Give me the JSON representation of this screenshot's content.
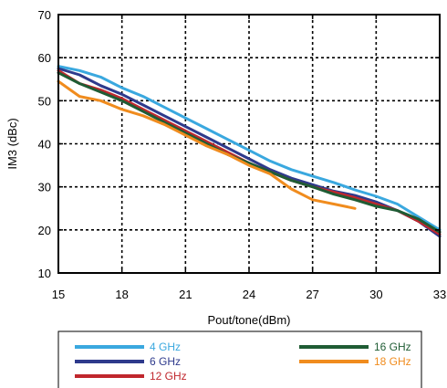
{
  "chart_data": {
    "type": "line",
    "title": "",
    "xlabel": "Pout/tone(dBm)",
    "ylabel": "IM3 (dBc)",
    "xlim": [
      15,
      33
    ],
    "ylim": [
      10,
      70
    ],
    "xticks": [
      15,
      18,
      21,
      24,
      27,
      30,
      33
    ],
    "yticks": [
      10,
      20,
      30,
      40,
      50,
      60,
      70
    ],
    "grid": true,
    "legend_position": "below",
    "series": [
      {
        "name": "4 GHz",
        "color": "#3aa8df",
        "x": [
          15,
          16,
          17,
          18,
          19,
          20,
          21,
          22,
          23,
          24,
          25,
          26,
          27,
          28,
          29,
          30,
          31,
          32,
          33
        ],
        "y": [
          58,
          57,
          55.5,
          53,
          51,
          48.5,
          46,
          43.5,
          41,
          38.5,
          36,
          34,
          32.5,
          31,
          29.3,
          27.8,
          26,
          23,
          20
        ]
      },
      {
        "name": "6 GHz",
        "color": "#2e3a8c",
        "x": [
          15,
          16,
          17,
          18,
          19,
          20,
          21,
          22,
          23,
          24,
          25,
          26,
          27,
          28,
          29,
          30,
          31,
          32,
          33
        ],
        "y": [
          57.5,
          56,
          53.5,
          51.5,
          49,
          46.5,
          44,
          41.5,
          39,
          36.5,
          34,
          32,
          30.5,
          29,
          28,
          26.5,
          24.5,
          22,
          18.5
        ]
      },
      {
        "name": "12 GHz",
        "color": "#c0272d",
        "x": [
          15,
          16,
          17,
          18,
          19,
          20,
          21,
          22,
          23,
          24,
          25,
          26,
          27,
          28,
          29,
          30,
          31,
          32,
          33
        ],
        "y": [
          57,
          54,
          52.5,
          50.5,
          48,
          45.5,
          43,
          40.5,
          38,
          35.5,
          33.5,
          31.5,
          30,
          28.8,
          27.5,
          26,
          24.5,
          22,
          19
        ]
      },
      {
        "name": "16 GHz",
        "color": "#1f5c34",
        "x": [
          15,
          16,
          17,
          18,
          19,
          20,
          21,
          22,
          23,
          24,
          25,
          26,
          27,
          28,
          29,
          30,
          31,
          32,
          33
        ],
        "y": [
          56.5,
          54,
          52,
          50,
          47.5,
          45,
          42.5,
          40,
          37.5,
          35.5,
          33.5,
          31.5,
          30,
          28.3,
          27,
          25.5,
          24.5,
          22.5,
          19.5
        ]
      },
      {
        "name": "18 GHz",
        "color": "#f08c1e",
        "x": [
          15,
          16,
          17,
          18,
          19,
          20,
          21,
          22,
          23,
          24,
          25,
          26,
          27,
          28,
          29
        ],
        "y": [
          54.5,
          51,
          50,
          48,
          46.5,
          44.5,
          42,
          39.5,
          37.5,
          35,
          33,
          29.5,
          27,
          26,
          25
        ]
      }
    ]
  }
}
